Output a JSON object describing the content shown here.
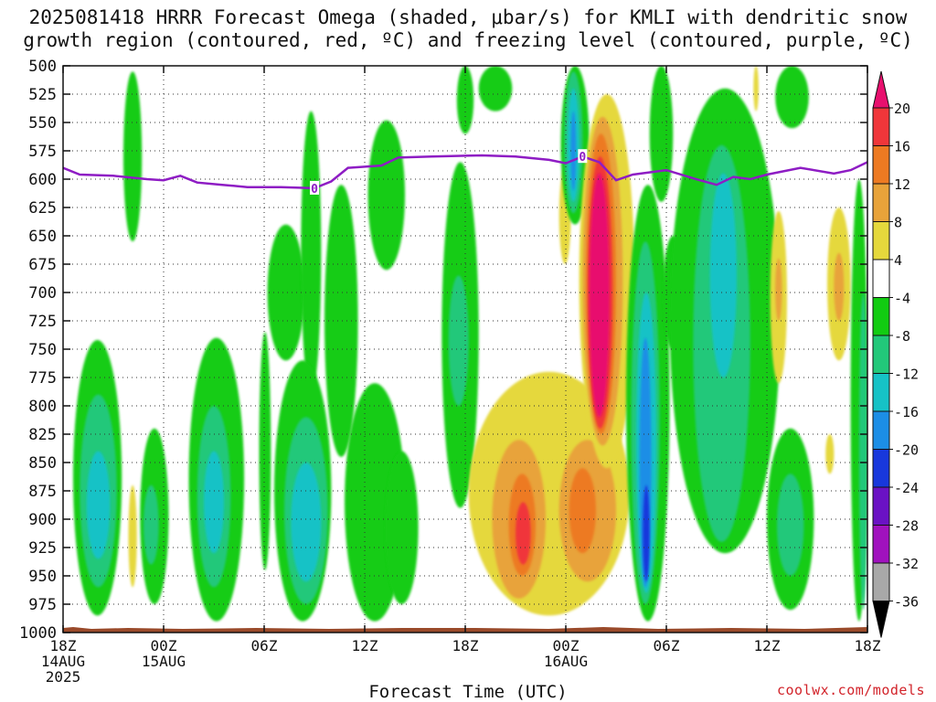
{
  "title_line1": "2025081418 HRRR Forecast Omega (shaded, μbar/s) for KMLI with dendritic snow",
  "title_line2": "growth region (contoured, red, ºC) and freezing level (contoured, purple, ºC)",
  "x_axis_title": "Forecast Time (UTC)",
  "credit": "coolwx.com/models",
  "chart_data": {
    "type": "heatmap",
    "title": "2025081418 HRRR Forecast Omega (shaded, μbar/s) for KMLI with dendritic snow growth region (contoured, red, ºC) and freezing level (contoured, purple, ºC)",
    "xlabel": "Forecast Time (UTC)",
    "ylabel": "",
    "y_ticks": [
      500,
      525,
      550,
      575,
      600,
      625,
      650,
      675,
      700,
      725,
      750,
      775,
      800,
      825,
      850,
      875,
      900,
      925,
      950,
      975,
      1000
    ],
    "y_range": [
      500,
      1000
    ],
    "x_range_hours": [
      0,
      48
    ],
    "x_ticks": [
      {
        "hour": 0,
        "lines": [
          "18Z",
          "14AUG",
          "2025"
        ]
      },
      {
        "hour": 6,
        "lines": [
          "00Z",
          "15AUG"
        ]
      },
      {
        "hour": 12,
        "lines": [
          "06Z"
        ]
      },
      {
        "hour": 18,
        "lines": [
          "12Z"
        ]
      },
      {
        "hour": 24,
        "lines": [
          "18Z"
        ]
      },
      {
        "hour": 30,
        "lines": [
          "00Z",
          "16AUG"
        ]
      },
      {
        "hour": 36,
        "lines": [
          "06Z"
        ]
      },
      {
        "hour": 42,
        "lines": [
          "12Z"
        ]
      },
      {
        "hour": 48,
        "lines": [
          "18Z"
        ]
      }
    ],
    "grid": true,
    "colorbar": {
      "labels": [
        "20",
        "16",
        "12",
        "8",
        "4",
        "-4",
        "-8",
        "-12",
        "-16",
        "-20",
        "-24",
        "-28",
        "-32",
        "-36"
      ],
      "levels": [
        {
          "min": 20,
          "max": null,
          "color": "#e8106e"
        },
        {
          "min": 16,
          "max": 20,
          "color": "#f0363a"
        },
        {
          "min": 12,
          "max": 16,
          "color": "#ed7a22"
        },
        {
          "min": 8,
          "max": 12,
          "color": "#e8a33a"
        },
        {
          "min": 4,
          "max": 8,
          "color": "#e5d83c"
        },
        {
          "min": -4,
          "max": 4,
          "color": "#ffffff"
        },
        {
          "min": -8,
          "max": -4,
          "color": "#12cc12"
        },
        {
          "min": -12,
          "max": -8,
          "color": "#22c87a"
        },
        {
          "min": -16,
          "max": -12,
          "color": "#16c2c6"
        },
        {
          "min": -20,
          "max": -16,
          "color": "#1c8ee6"
        },
        {
          "min": -24,
          "max": -20,
          "color": "#1838dc"
        },
        {
          "min": -28,
          "max": -24,
          "color": "#6a12c4"
        },
        {
          "min": -32,
          "max": -28,
          "color": "#a012be"
        },
        {
          "min": -36,
          "max": -32,
          "color": "#a8a8a8"
        },
        {
          "min": null,
          "max": -36,
          "color": "#000000"
        }
      ]
    },
    "freezing_level": {
      "label": "0",
      "color": "#8e1cc4",
      "points": [
        [
          0,
          590
        ],
        [
          1,
          596
        ],
        [
          3,
          597
        ],
        [
          5,
          600
        ],
        [
          6,
          601
        ],
        [
          7,
          597
        ],
        [
          8,
          603
        ],
        [
          9.5,
          605
        ],
        [
          11,
          607
        ],
        [
          13,
          607
        ],
        [
          15,
          608
        ],
        [
          16,
          602
        ],
        [
          17,
          590
        ],
        [
          19,
          588
        ],
        [
          20,
          581
        ],
        [
          22,
          580
        ],
        [
          25,
          579
        ],
        [
          27,
          580
        ],
        [
          29,
          583
        ],
        [
          30,
          586
        ],
        [
          31,
          580
        ],
        [
          32,
          585
        ],
        [
          33,
          601
        ],
        [
          34,
          596
        ],
        [
          36,
          592
        ],
        [
          38,
          601
        ],
        [
          39,
          605
        ],
        [
          40,
          598
        ],
        [
          41,
          600
        ],
        [
          42,
          596
        ],
        [
          44,
          590
        ],
        [
          46,
          595
        ],
        [
          47,
          592
        ],
        [
          48,
          585
        ]
      ]
    },
    "omega_regions": [
      {
        "level": -4,
        "hours": [
          0.6,
          3.5
        ],
        "p": [
          742,
          985
        ]
      },
      {
        "level": -8,
        "hours": [
          1.0,
          3.2
        ],
        "p": [
          790,
          960
        ]
      },
      {
        "level": -12,
        "hours": [
          1.4,
          2.8
        ],
        "p": [
          840,
          935
        ]
      },
      {
        "level": -4,
        "hours": [
          3.6,
          4.7
        ],
        "p": [
          505,
          655
        ]
      },
      {
        "level": -4,
        "hours": [
          4.6,
          6.3
        ],
        "p": [
          820,
          975
        ]
      },
      {
        "level": -8,
        "hours": [
          4.8,
          5.7
        ],
        "p": [
          870,
          940
        ]
      },
      {
        "level": 4,
        "hours": [
          3.9,
          4.4
        ],
        "p": [
          870,
          960
        ]
      },
      {
        "level": -4,
        "hours": [
          7.5,
          10.8
        ],
        "p": [
          740,
          990
        ]
      },
      {
        "level": -8,
        "hours": [
          8.0,
          10.0
        ],
        "p": [
          800,
          960
        ]
      },
      {
        "level": -12,
        "hours": [
          8.4,
          9.6
        ],
        "p": [
          840,
          930
        ]
      },
      {
        "level": -4,
        "hours": [
          11.7,
          12.4
        ],
        "p": [
          735,
          945
        ]
      },
      {
        "level": -4,
        "hours": [
          12.2,
          14.4
        ],
        "p": [
          640,
          760
        ]
      },
      {
        "level": -4,
        "hours": [
          14.2,
          15.4
        ],
        "p": [
          540,
          790
        ]
      },
      {
        "level": -4,
        "hours": [
          15.6,
          17.6
        ],
        "p": [
          605,
          845
        ]
      },
      {
        "level": -4,
        "hours": [
          12.6,
          16.0
        ],
        "p": [
          760,
          990
        ]
      },
      {
        "level": -8,
        "hours": [
          13.2,
          15.8
        ],
        "p": [
          810,
          975
        ]
      },
      {
        "level": -12,
        "hours": [
          13.6,
          15.4
        ],
        "p": [
          850,
          955
        ]
      },
      {
        "level": -4,
        "hours": [
          16.8,
          20.4
        ],
        "p": [
          780,
          990
        ]
      },
      {
        "level": -4,
        "hours": [
          18.2,
          20.4
        ],
        "p": [
          548,
          680
        ]
      },
      {
        "level": -4,
        "hours": [
          19.2,
          21.2
        ],
        "p": [
          840,
          975
        ]
      },
      {
        "level": -4,
        "hours": [
          22.6,
          24.8
        ],
        "p": [
          585,
          890
        ]
      },
      {
        "level": -8,
        "hours": [
          23.0,
          24.2
        ],
        "p": [
          685,
          800
        ]
      },
      {
        "level": -4,
        "hours": [
          23.5,
          24.5
        ],
        "p": [
          500,
          560
        ]
      },
      {
        "level": -4,
        "hours": [
          24.8,
          26.8
        ],
        "p": [
          500,
          540
        ]
      },
      {
        "level": 4,
        "hours": [
          24.2,
          33.8
        ],
        "p": [
          770,
          985
        ]
      },
      {
        "level": 8,
        "hours": [
          25.6,
          28.8
        ],
        "p": [
          830,
          970
        ]
      },
      {
        "level": 12,
        "hours": [
          26.6,
          28.2
        ],
        "p": [
          860,
          950
        ]
      },
      {
        "level": 16,
        "hours": [
          27.0,
          27.9
        ],
        "p": [
          885,
          940
        ]
      },
      {
        "level": 8,
        "hours": [
          29.6,
          33.0
        ],
        "p": [
          830,
          955
        ]
      },
      {
        "level": 12,
        "hours": [
          30.2,
          31.8
        ],
        "p": [
          855,
          930
        ]
      },
      {
        "level": 4,
        "hours": [
          29.6,
          30.3
        ],
        "p": [
          590,
          675
        ]
      },
      {
        "level": -4,
        "hours": [
          29.7,
          31.4
        ],
        "p": [
          500,
          640
        ]
      },
      {
        "level": -8,
        "hours": [
          29.9,
          31.0
        ],
        "p": [
          505,
          630
        ]
      },
      {
        "level": -12,
        "hours": [
          30.1,
          30.8
        ],
        "p": [
          520,
          620
        ]
      },
      {
        "level": -16,
        "hours": [
          30.3,
          30.6
        ],
        "p": [
          540,
          610
        ]
      },
      {
        "level": 4,
        "hours": [
          30.8,
          34.1
        ],
        "p": [
          525,
          855
        ]
      },
      {
        "level": 8,
        "hours": [
          31.0,
          33.4
        ],
        "p": [
          545,
          835
        ]
      },
      {
        "level": 12,
        "hours": [
          31.2,
          33.0
        ],
        "p": [
          560,
          825
        ]
      },
      {
        "level": 16,
        "hours": [
          31.3,
          32.8
        ],
        "p": [
          580,
          820
        ]
      },
      {
        "level": 20,
        "hours": [
          31.4,
          32.6
        ],
        "p": [
          595,
          810
        ]
      },
      {
        "level": -4,
        "hours": [
          33.6,
          36.2
        ],
        "p": [
          605,
          990
        ]
      },
      {
        "level": -8,
        "hours": [
          33.9,
          35.6
        ],
        "p": [
          655,
          975
        ]
      },
      {
        "level": -12,
        "hours": [
          34.2,
          35.4
        ],
        "p": [
          700,
          965
        ]
      },
      {
        "level": -16,
        "hours": [
          34.4,
          35.1
        ],
        "p": [
          740,
          960
        ]
      },
      {
        "level": -20,
        "hours": [
          34.6,
          35.0
        ],
        "p": [
          870,
          955
        ]
      },
      {
        "level": -4,
        "hours": [
          35.0,
          36.4
        ],
        "p": [
          500,
          620
        ]
      },
      {
        "level": -4,
        "hours": [
          35.8,
          37.0
        ],
        "p": [
          650,
          750
        ]
      },
      {
        "level": -4,
        "hours": [
          36.2,
          42.8
        ],
        "p": [
          520,
          930
        ]
      },
      {
        "level": -8,
        "hours": [
          37.6,
          41.0
        ],
        "p": [
          570,
          920
        ]
      },
      {
        "level": -12,
        "hours": [
          38.6,
          40.2
        ],
        "p": [
          595,
          775
        ]
      },
      {
        "level": 4,
        "hours": [
          42.2,
          43.2
        ],
        "p": [
          628,
          780
        ]
      },
      {
        "level": 8,
        "hours": [
          42.5,
          42.9
        ],
        "p": [
          670,
          725
        ]
      },
      {
        "level": -4,
        "hours": [
          42.0,
          44.8
        ],
        "p": [
          820,
          980
        ]
      },
      {
        "level": -8,
        "hours": [
          42.6,
          44.2
        ],
        "p": [
          860,
          950
        ]
      },
      {
        "level": -4,
        "hours": [
          42.5,
          44.5
        ],
        "p": [
          500,
          555
        ]
      },
      {
        "level": 4,
        "hours": [
          41.2,
          41.5
        ],
        "p": [
          500,
          540
        ]
      },
      {
        "level": 4,
        "hours": [
          45.5,
          46.0
        ],
        "p": [
          825,
          860
        ]
      },
      {
        "level": 4,
        "hours": [
          45.6,
          47.0
        ],
        "p": [
          625,
          760
        ]
      },
      {
        "level": 8,
        "hours": [
          46.0,
          46.6
        ],
        "p": [
          665,
          725
        ]
      },
      {
        "level": -4,
        "hours": [
          47.0,
          48.0
        ],
        "p": [
          600,
          990
        ]
      },
      {
        "level": -8,
        "hours": [
          47.5,
          48.0
        ],
        "p": [
          700,
          980
        ]
      }
    ]
  }
}
